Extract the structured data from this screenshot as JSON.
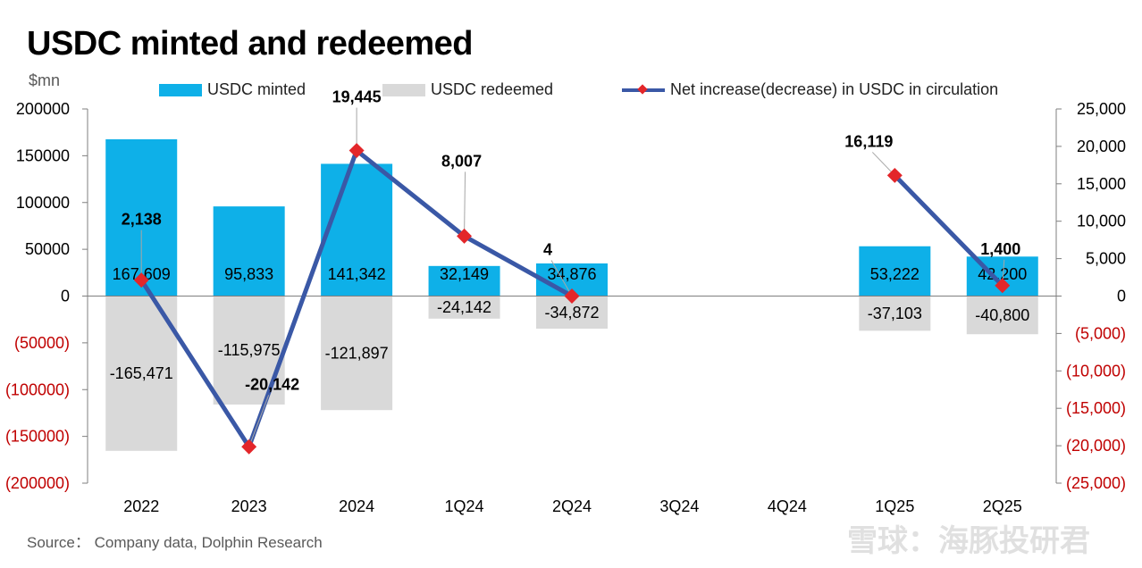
{
  "chart_data": {
    "type": "bar",
    "title": "USDC minted and redeemed",
    "unit": "$mn",
    "source": "Source： Company data, Dolphin Research",
    "watermark": "雪球：海豚投研君",
    "categories": [
      "2022",
      "2023",
      "2024",
      "1Q24",
      "2Q24",
      "3Q24",
      "4Q24",
      "1Q25",
      "2Q25"
    ],
    "series": [
      {
        "name": "USDC minted",
        "type": "bar",
        "axis": "left",
        "color": "#0eb0e8",
        "values": [
          167609,
          95833,
          141342,
          32149,
          34876,
          null,
          null,
          53222,
          42200
        ],
        "labels": [
          "167,609",
          "95,833",
          "141,342",
          "32,149",
          "34,876",
          "",
          "",
          "53,222",
          "42,200"
        ]
      },
      {
        "name": "USDC redeemed",
        "type": "bar",
        "axis": "left",
        "color": "#d9d9d9",
        "values": [
          -165471,
          -115975,
          -121897,
          -24142,
          -34872,
          null,
          null,
          -37103,
          -40800
        ],
        "labels": [
          "-165,471",
          "-115,975",
          "-121,897",
          "-24,142",
          "-34,872",
          "",
          "",
          "-37,103",
          "-40,800"
        ]
      },
      {
        "name": "Net increase(decrease) in USDC in circulation",
        "type": "line",
        "axis": "right",
        "color": "#3a58a6",
        "marker_color": "#e3262a",
        "values": [
          2138,
          -20142,
          19445,
          8007,
          4,
          null,
          null,
          16119,
          1400
        ],
        "labels": [
          "2,138",
          "-20,142",
          "19,445",
          "8,007",
          "4",
          "",
          "",
          "16,119",
          "1,400"
        ]
      }
    ],
    "y_left": {
      "min": -200000,
      "max": 200000,
      "ticks": [
        200000,
        150000,
        100000,
        50000,
        0,
        -50000,
        -100000,
        -150000,
        -200000
      ],
      "tick_labels": [
        "200000",
        "150000",
        "100000",
        "50000",
        "0",
        "(50000)",
        "(100000)",
        "(150000)",
        "(200000)"
      ]
    },
    "y_right": {
      "min": -25000,
      "max": 25000,
      "ticks": [
        25000,
        20000,
        15000,
        10000,
        5000,
        0,
        -5000,
        -10000,
        -15000,
        -20000,
        -25000
      ],
      "tick_labels": [
        "25,000",
        "20,000",
        "15,000",
        "10,000",
        "5,000",
        "0",
        "(5,000)",
        "(10,000)",
        "(15,000)",
        "(20,000)",
        "(25,000)"
      ]
    },
    "negative_tick_color": "#c00000",
    "legend_position": "top",
    "grid": false
  }
}
